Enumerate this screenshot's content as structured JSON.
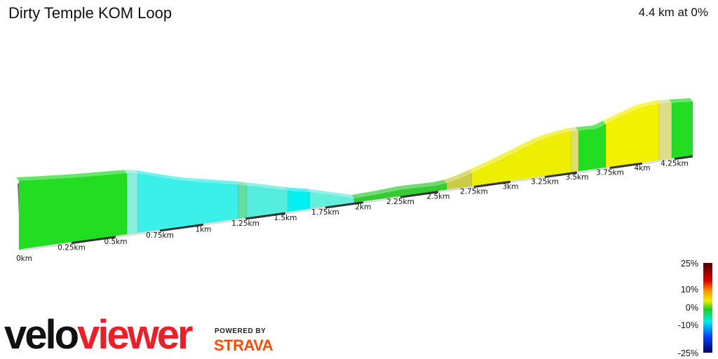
{
  "header": {
    "title": "Dirty Temple KOM Loop",
    "summary": "4.4 km at 0%"
  },
  "chart_data": {
    "type": "area",
    "title": "Dirty Temple KOM Loop",
    "distance_km": 4.4,
    "average_gradient": "0%",
    "x_ticks": [
      "0km",
      "0.25km",
      "0.5km",
      "0.75km",
      "1km",
      "1.25km",
      "1.5km",
      "1.75km",
      "2km",
      "2.25km",
      "2.5km",
      "2.75km",
      "3km",
      "3.25km",
      "3.5km",
      "3.75km",
      "4km",
      "4.25km"
    ],
    "segments": [
      {
        "from_km": 0,
        "to_km": 0.55,
        "gradient_color": "#22dd22"
      },
      {
        "from_km": 0.55,
        "to_km": 0.62,
        "gradient_color": "#88eedd"
      },
      {
        "from_km": 0.62,
        "to_km": 1.25,
        "gradient_color": "#3af0e8"
      },
      {
        "from_km": 1.25,
        "to_km": 1.3,
        "gradient_color": "#66dd99"
      },
      {
        "from_km": 1.3,
        "to_km": 1.55,
        "gradient_color": "#55eedd"
      },
      {
        "from_km": 1.55,
        "to_km": 1.7,
        "gradient_color": "#00f0f0"
      },
      {
        "from_km": 1.7,
        "to_km": 2.0,
        "gradient_color": "#66eedd"
      },
      {
        "from_km": 2.0,
        "to_km": 2.55,
        "gradient_color": "#33cc33"
      },
      {
        "from_km": 2.55,
        "to_km": 2.7,
        "gradient_color": "#cccc44"
      },
      {
        "from_km": 2.7,
        "to_km": 3.35,
        "gradient_color": "#eeee00"
      },
      {
        "from_km": 3.35,
        "to_km": 3.4,
        "gradient_color": "#dddd77"
      },
      {
        "from_km": 3.4,
        "to_km": 3.6,
        "gradient_color": "#22dd22"
      },
      {
        "from_km": 3.6,
        "to_km": 4.0,
        "gradient_color": "#f2f200"
      },
      {
        "from_km": 4.0,
        "to_km": 4.15,
        "gradient_color": "#dddd88"
      },
      {
        "from_km": 4.15,
        "to_km": 4.4,
        "gradient_color": "#22dd22"
      }
    ],
    "legend": {
      "labels": [
        "25%",
        "10%",
        "0%",
        "-10%",
        "-25%"
      ],
      "colors": [
        "#500000",
        "#dd0000",
        "#ff8800",
        "#eeee00",
        "#22cc22",
        "#00eeee",
        "#0044ff",
        "#000060"
      ]
    }
  },
  "branding": {
    "logo_left": "velo",
    "logo_right": "viewer",
    "powered_by": "POWERED BY",
    "strava": "STRAVA"
  }
}
